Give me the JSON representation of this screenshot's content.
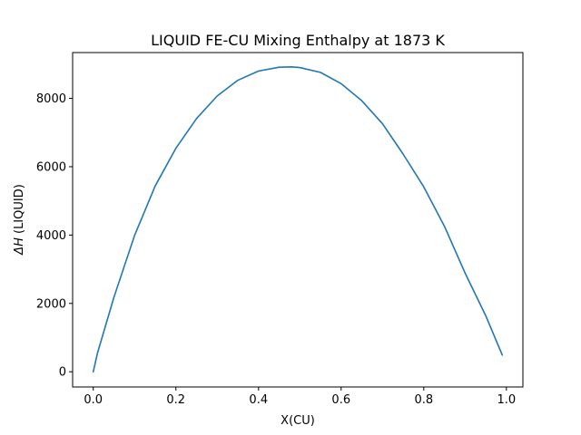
{
  "chart_data": {
    "type": "line",
    "title": "LIQUID FE-CU Mixing Enthalpy at 1873 K",
    "xlabel": "X(CU)",
    "ylabel_symbol": "ΔH",
    "ylabel_rest": " (LIQUID)",
    "xlim": [
      -0.05,
      1.04
    ],
    "ylim": [
      -445,
      9340
    ],
    "xticks": [
      {
        "value": 0.0,
        "label": "0.0"
      },
      {
        "value": 0.2,
        "label": "0.2"
      },
      {
        "value": 0.4,
        "label": "0.4"
      },
      {
        "value": 0.6,
        "label": "0.6"
      },
      {
        "value": 0.8,
        "label": "0.8"
      },
      {
        "value": 1.0,
        "label": "1.0"
      }
    ],
    "yticks": [
      {
        "value": 0,
        "label": "0"
      },
      {
        "value": 2000,
        "label": "2000"
      },
      {
        "value": 4000,
        "label": "4000"
      },
      {
        "value": 6000,
        "label": "6000"
      },
      {
        "value": 8000,
        "label": "8000"
      }
    ],
    "grid": false,
    "series": [
      {
        "color": "#1f77b4",
        "x": [
          0.0,
          0.01,
          0.05,
          0.1,
          0.15,
          0.2,
          0.25,
          0.3,
          0.35,
          0.4,
          0.45,
          0.48,
          0.5,
          0.55,
          0.6,
          0.65,
          0.7,
          0.75,
          0.8,
          0.85,
          0.9,
          0.95,
          0.99
        ],
        "y": [
          0,
          540,
          2180,
          3990,
          5440,
          6540,
          7410,
          8070,
          8530,
          8800,
          8910,
          8920,
          8900,
          8760,
          8430,
          7930,
          7260,
          6370,
          5410,
          4260,
          2890,
          1640,
          490
        ]
      }
    ]
  }
}
